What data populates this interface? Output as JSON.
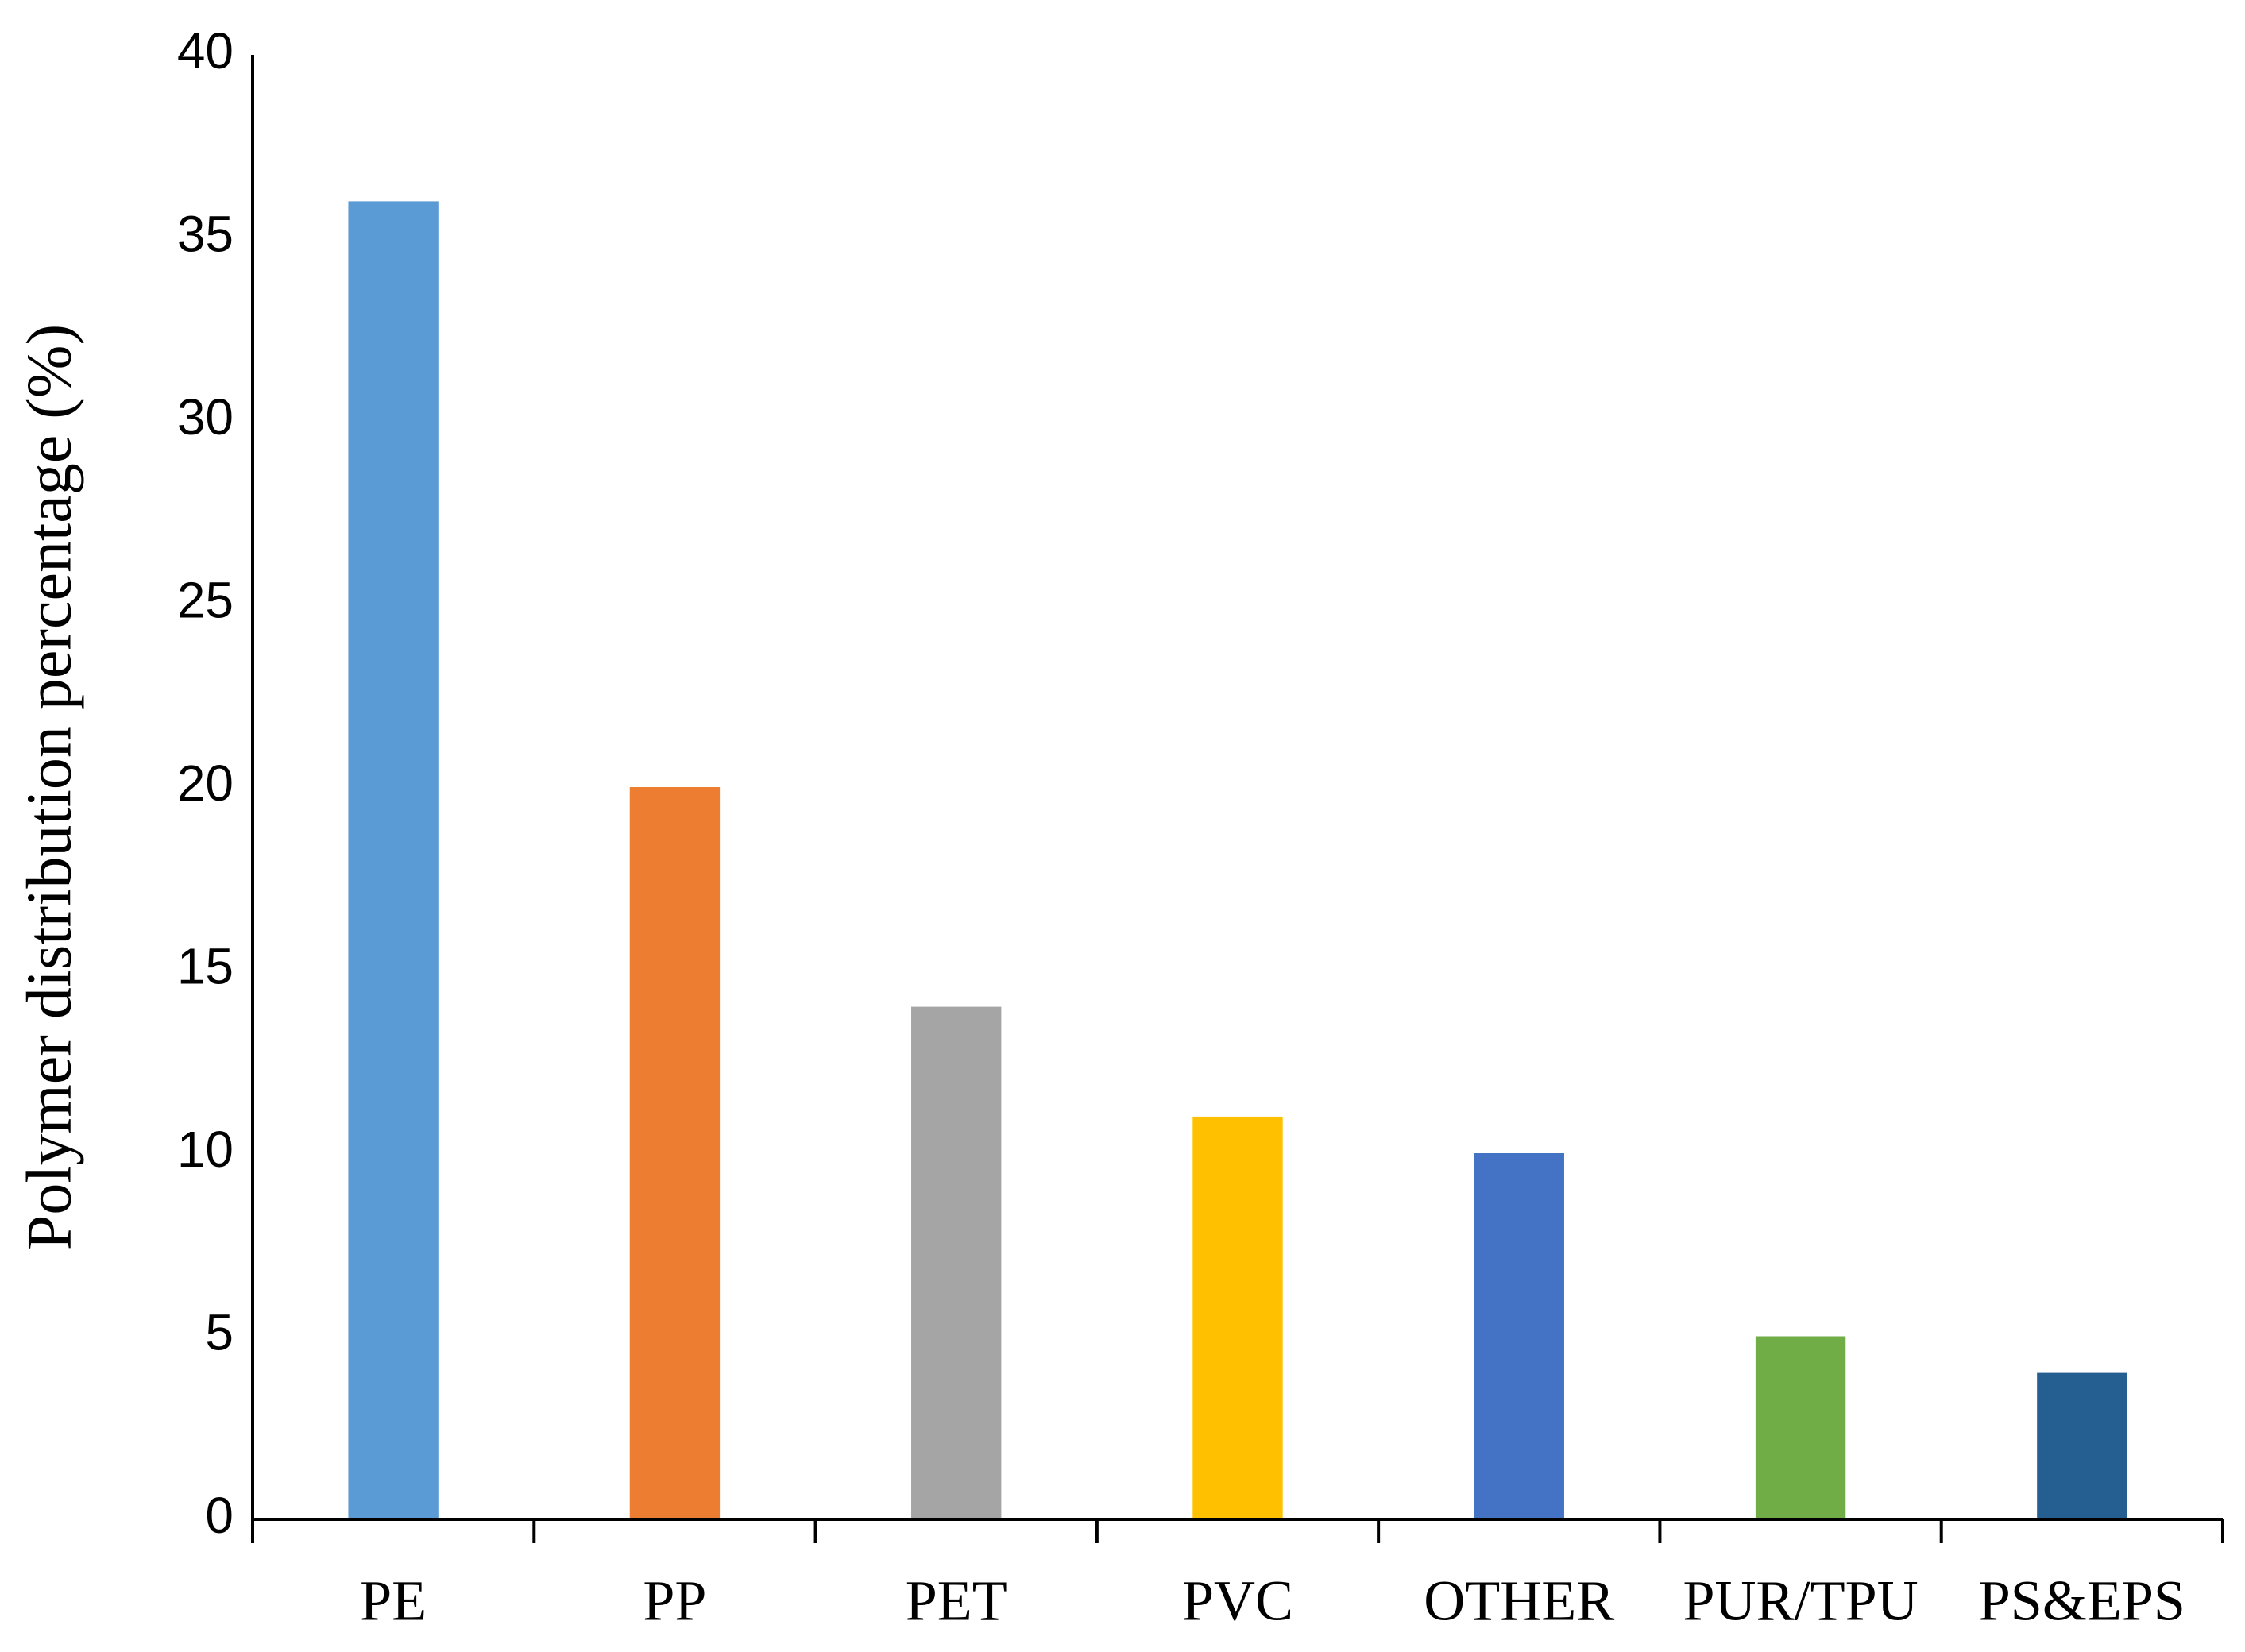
{
  "chart_data": {
    "type": "bar",
    "y_label": "Polymer distribution percentage (%)",
    "categories": [
      "PE",
      "PP",
      "PET",
      "PVC",
      "OTHER",
      "PUR/TPU",
      "PS&EPS"
    ],
    "values": [
      36,
      20,
      14,
      11,
      10,
      5,
      4
    ],
    "colors": [
      "#5b9bd5",
      "#ed7d31",
      "#a5a5a5",
      "#ffc000",
      "#4472c4",
      "#70ad47",
      "#255e91"
    ],
    "ylim": [
      0,
      40
    ],
    "yticks": [
      0,
      5,
      10,
      15,
      20,
      25,
      30,
      35,
      40
    ],
    "grid": false
  }
}
